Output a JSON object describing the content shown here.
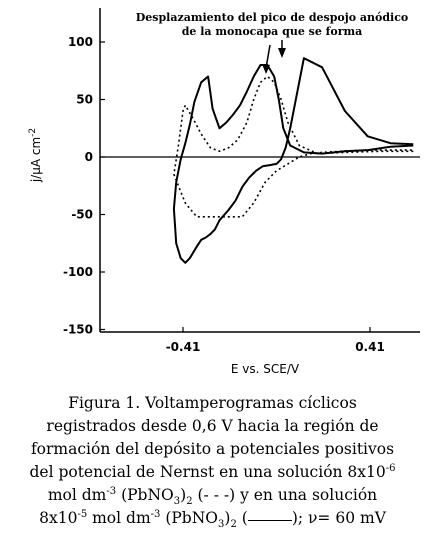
{
  "chart_data": {
    "type": "line",
    "xlabel": "E vs. SCE/V",
    "ylabel": "j/μA cm",
    "ylabel_sup": "-2",
    "x_ticks": [
      "-0.41",
      "0.41"
    ],
    "x_tick_values": [
      -0.41,
      0.41
    ],
    "y_ticks": [
      "100",
      "50",
      "0",
      "-50",
      "-100",
      "-150"
    ],
    "y_tick_values": [
      100,
      50,
      0,
      -50,
      -100,
      -150
    ],
    "xlim": [
      -0.75,
      0.6
    ],
    "ylim": [
      -150,
      130
    ],
    "grid": false,
    "annotation": {
      "line1": "Desplazamiento del pico de despojo anódico",
      "line2": "de la monocapa que se forma"
    },
    "series": [
      {
        "style": "solid",
        "x": [
          0.6,
          0.5,
          0.4,
          0.3,
          0.2,
          0.12,
          0.06,
          0.03,
          0.01,
          -0.01,
          -0.04,
          -0.07,
          -0.1,
          -0.13,
          -0.16,
          -0.19,
          -0.22,
          -0.25,
          -0.28,
          -0.3,
          -0.33,
          -0.36,
          -0.38,
          -0.4,
          -0.42,
          -0.44,
          -0.45,
          -0.44,
          -0.42,
          -0.4,
          -0.38,
          -0.35,
          -0.33,
          -0.31,
          -0.29,
          -0.27,
          -0.25,
          -0.21,
          -0.18,
          -0.15,
          -0.12,
          -0.09,
          -0.06,
          -0.03,
          0.0,
          0.02,
          0.04,
          0.06,
          0.08,
          0.12,
          0.2,
          0.3,
          0.4,
          0.5,
          0.6
        ],
        "y": [
          10,
          9,
          6,
          5,
          3,
          4,
          10,
          25,
          50,
          70,
          80,
          80,
          70,
          57,
          45,
          37,
          30,
          25,
          42,
          70,
          65,
          48,
          28,
          12,
          -2,
          -22,
          -45,
          -75,
          -88,
          -92,
          -88,
          -78,
          -72,
          -70,
          -67,
          -63,
          -55,
          -46,
          -38,
          -26,
          -18,
          -12,
          -8,
          -7,
          -6,
          -2,
          8,
          25,
          45,
          86,
          78,
          40,
          18,
          12,
          11
        ]
      },
      {
        "style": "dotted",
        "x": [
          0.6,
          0.45,
          0.3,
          0.18,
          0.1,
          0.05,
          0.02,
          -0.01,
          -0.04,
          -0.07,
          -0.1,
          -0.13,
          -0.17,
          -0.21,
          -0.25,
          -0.29,
          -0.33,
          -0.37,
          -0.4,
          -0.41,
          -0.43,
          -0.45,
          -0.43,
          -0.4,
          -0.35,
          -0.3,
          -0.25,
          -0.2,
          -0.15,
          -0.1,
          -0.05,
          0.0,
          0.05,
          0.1,
          0.15,
          0.2,
          0.28,
          0.38,
          0.5,
          0.6
        ],
        "y": [
          5,
          5,
          4,
          3,
          10,
          30,
          50,
          65,
          70,
          65,
          50,
          30,
          15,
          8,
          5,
          8,
          20,
          35,
          45,
          40,
          10,
          -15,
          -25,
          -40,
          -52,
          -52,
          -52,
          -52,
          -52,
          -40,
          -22,
          -12,
          -6,
          0,
          3,
          4,
          5,
          6,
          6,
          6
        ]
      }
    ]
  },
  "caption": {
    "line1": "Figura 1. Voltamperogramas cíclicos",
    "line2": "registrados desde 0,6 V hacia la región de",
    "line3": "formación del depósito a potenciales positivos",
    "line4a": "del potencial de Nernst en una solución 8x10",
    "line4sup": "-6",
    "line5a": "mol dm",
    "line5sup": "-3",
    "line5b": " (PbNO",
    "line5sub": "3",
    "line5c": ")",
    "line5sub2": "2",
    "line5d": " (- -  -) y en una solución",
    "line6a": "8x10",
    "line6sup": "-5",
    "line6b": " mol dm",
    "line6sup2": "-3",
    "line6c": " (PbNO",
    "line6sub": "3",
    "line6d": ")",
    "line6sub2": "2",
    "line6e": " (",
    "line6f": "); ν= 60 mV"
  }
}
